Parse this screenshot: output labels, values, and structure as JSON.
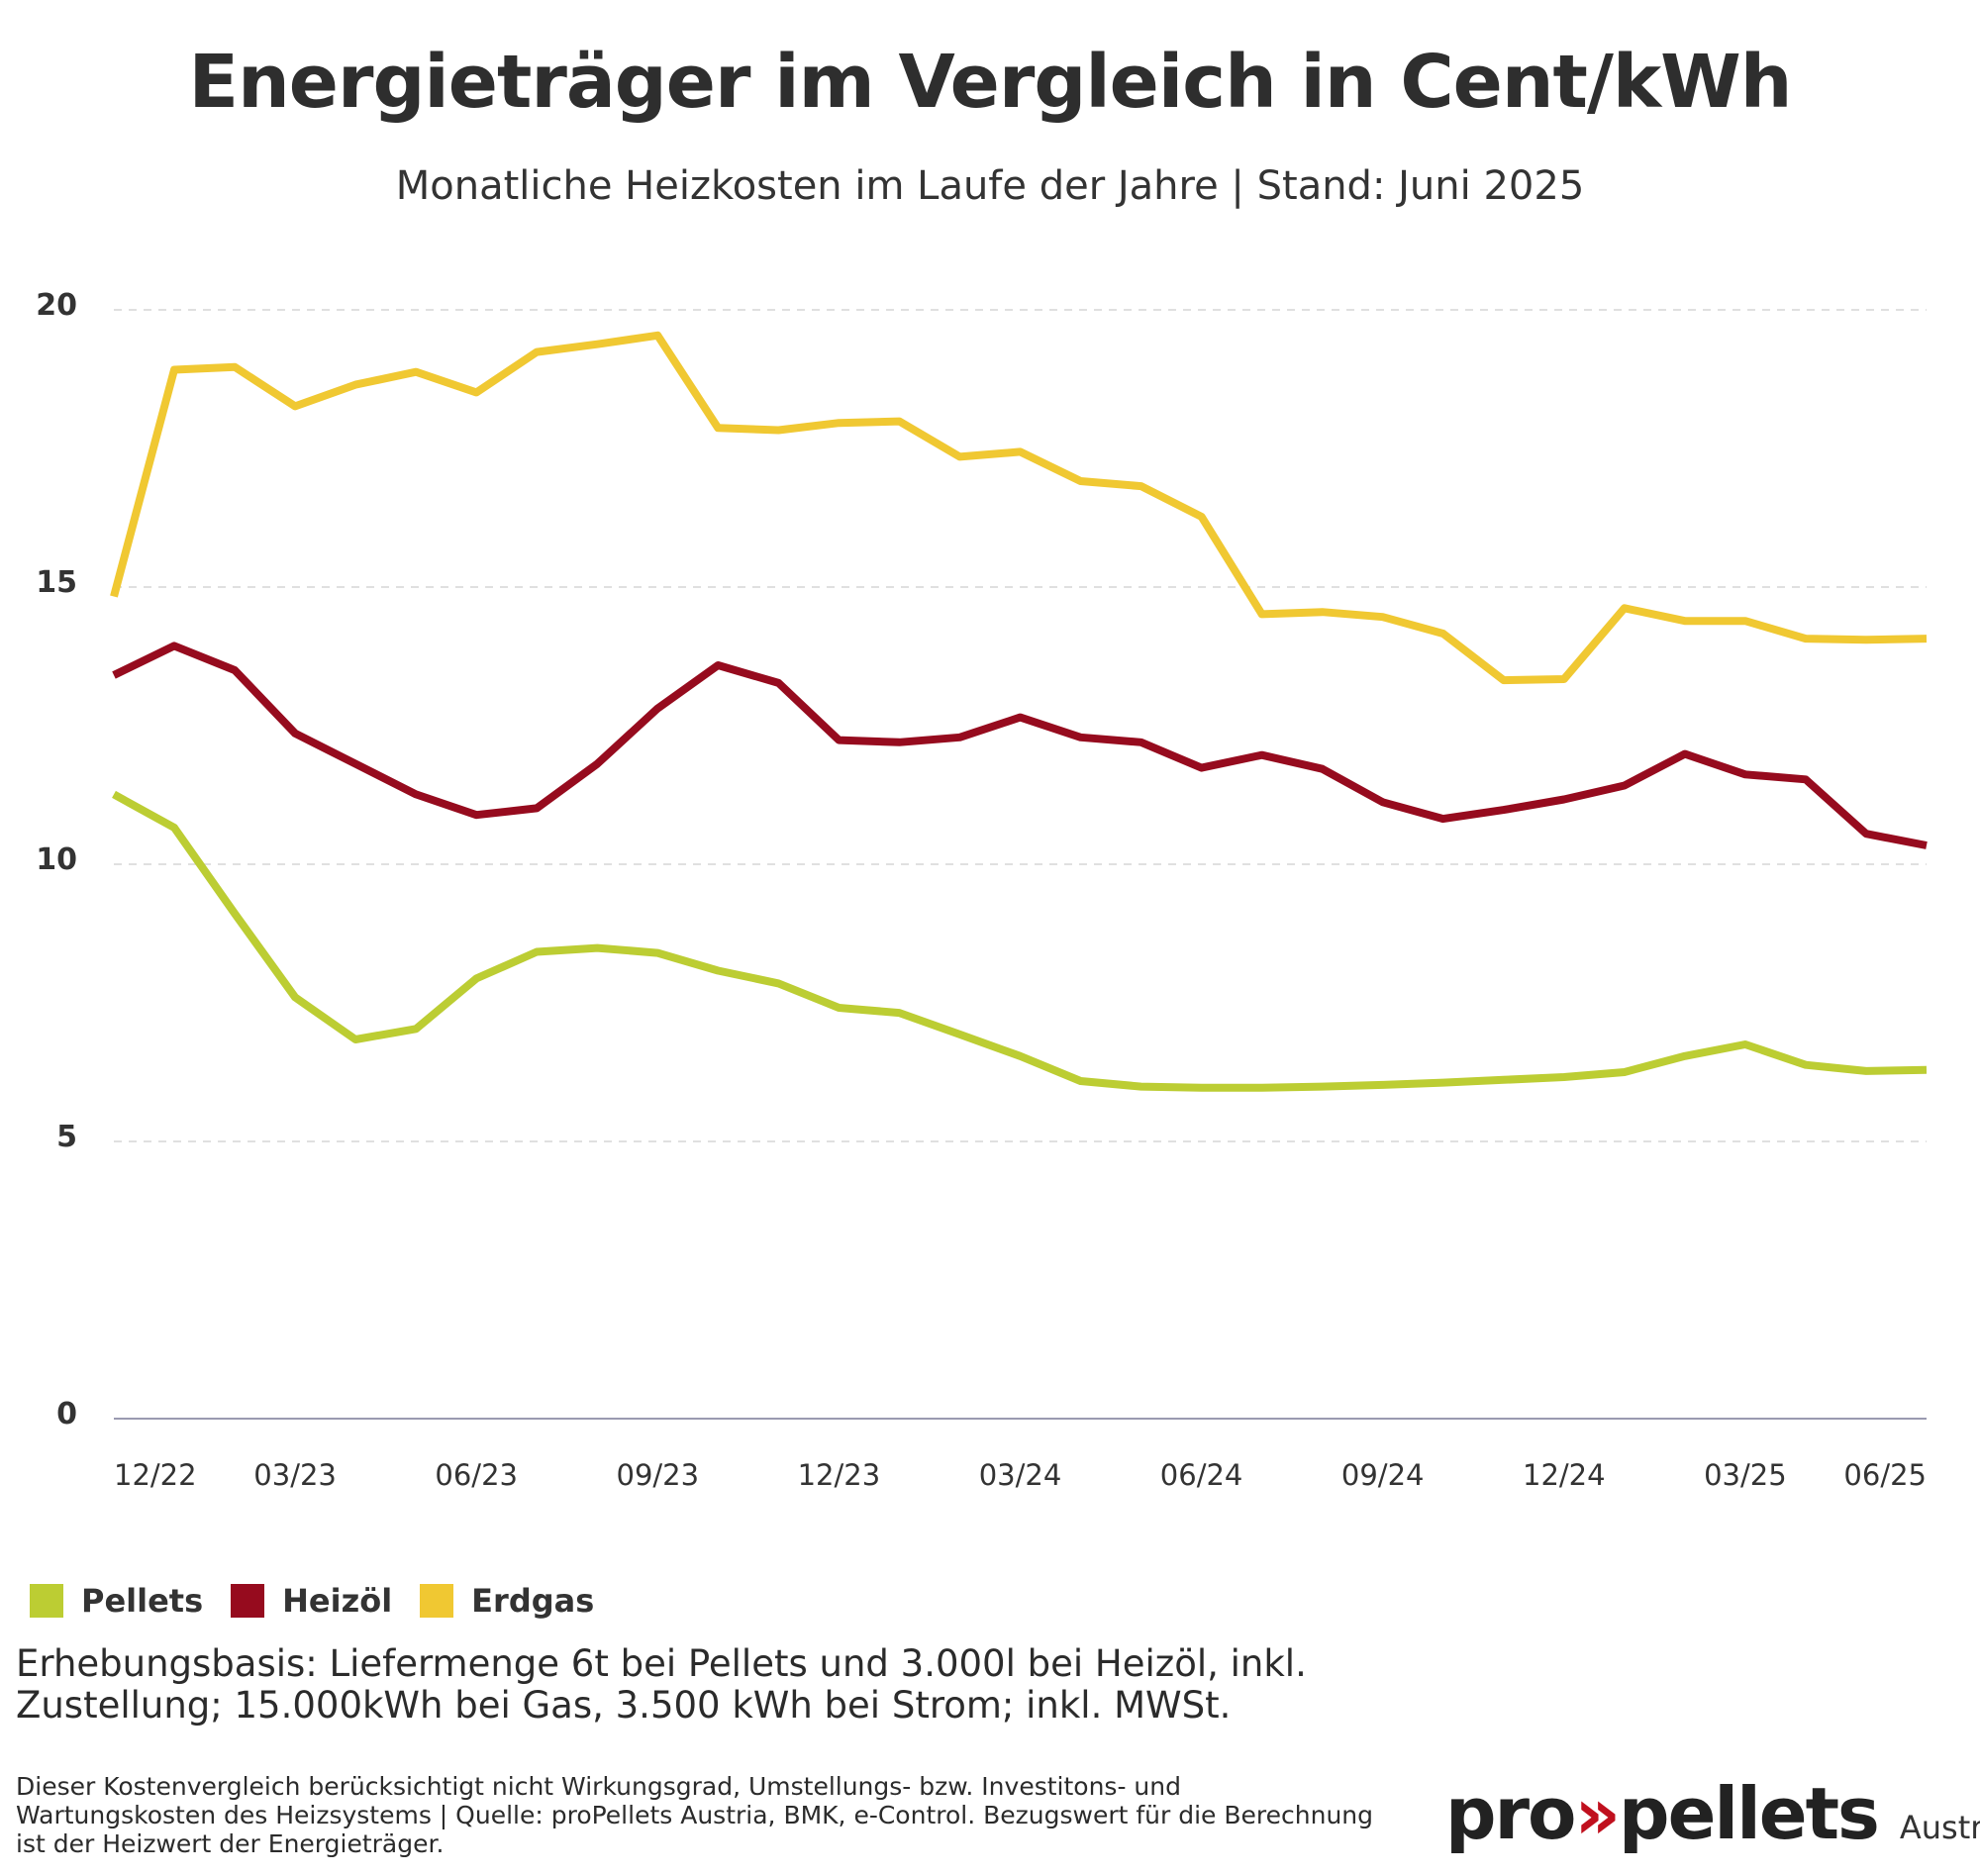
{
  "title": "Energieträger im Vergleich in Cent/kWh",
  "subtitle": "Monatliche Heizkosten im Laufe der Jahre | Stand: Juni 2025",
  "chart_data": {
    "type": "line",
    "title": "Energieträger im Vergleich in Cent/kWh",
    "subtitle": "Monatliche Heizkosten im Laufe der Jahre | Stand: Juni 2025",
    "xlabel": "",
    "ylabel": "",
    "ylim": [
      0,
      20
    ],
    "yticks": [
      0,
      5,
      10,
      15,
      20
    ],
    "grid": "horizontal dashed",
    "legend_position": "bottom-left",
    "x": [
      "12/22",
      "01/23",
      "02/23",
      "03/23",
      "04/23",
      "05/23",
      "06/23",
      "07/23",
      "08/23",
      "09/23",
      "10/23",
      "11/23",
      "12/23",
      "01/24",
      "02/24",
      "03/24",
      "04/24",
      "05/24",
      "06/24",
      "07/24",
      "08/24",
      "09/24",
      "10/24",
      "11/24",
      "12/24",
      "01/25",
      "02/25",
      "03/25",
      "04/25",
      "05/25",
      "06/25"
    ],
    "xtick_labels": [
      "12/22",
      "03/23",
      "06/23",
      "09/23",
      "12/23",
      "03/24",
      "06/24",
      "09/24",
      "12/24",
      "03/25",
      "06/25"
    ],
    "series": [
      {
        "name": "Pellets",
        "color": "#bccd33",
        "values": [
          11.26,
          10.66,
          9.11,
          7.6,
          6.84,
          7.03,
          7.94,
          8.42,
          8.49,
          8.4,
          8.08,
          7.85,
          7.41,
          7.32,
          6.93,
          6.54,
          6.09,
          5.99,
          5.97,
          5.97,
          5.99,
          6.02,
          6.06,
          6.11,
          6.16,
          6.25,
          6.54,
          6.75,
          6.38,
          6.27,
          6.29
        ]
      },
      {
        "name": "Heizöl",
        "color": "#960b1e",
        "values": [
          13.41,
          13.94,
          13.5,
          12.36,
          11.81,
          11.26,
          10.89,
          11.01,
          11.81,
          12.81,
          13.59,
          13.27,
          12.24,
          12.2,
          12.29,
          12.65,
          12.29,
          12.2,
          11.74,
          11.97,
          11.72,
          11.12,
          10.82,
          10.98,
          11.17,
          11.42,
          11.99,
          11.62,
          11.53,
          10.55,
          10.34
        ]
      },
      {
        "name": "Erdgas",
        "color": "#f0c832",
        "values": [
          14.83,
          18.92,
          18.97,
          18.26,
          18.65,
          18.88,
          18.51,
          19.24,
          19.38,
          19.54,
          17.87,
          17.83,
          17.96,
          17.99,
          17.35,
          17.44,
          16.91,
          16.82,
          16.27,
          14.51,
          14.55,
          14.46,
          14.16,
          13.32,
          13.34,
          14.62,
          14.39,
          14.39,
          14.07,
          14.05,
          14.07
        ]
      }
    ]
  },
  "footer": {
    "basis": "Erhebungsbasis: Liefermenge 6t bei Pellets und 3.000l bei Heizöl, inkl. Zustellung; 15.000kWh bei Gas, 3.500 kWh bei Strom; inkl. MWSt.",
    "note": "Dieser Kostenvergleich berücksichtigt nicht Wirkungsgrad, Umstellungs- bzw. Investitons- und Wartungskosten des Heizsystems | Quelle: proPellets Austria, BMK, e-Control. Bezugswert für die Berechnung ist der Heizwert der Energieträger."
  },
  "logo": {
    "text_left": "pro",
    "arrows": "»",
    "text_right": "pellets",
    "sub": "Austria"
  }
}
